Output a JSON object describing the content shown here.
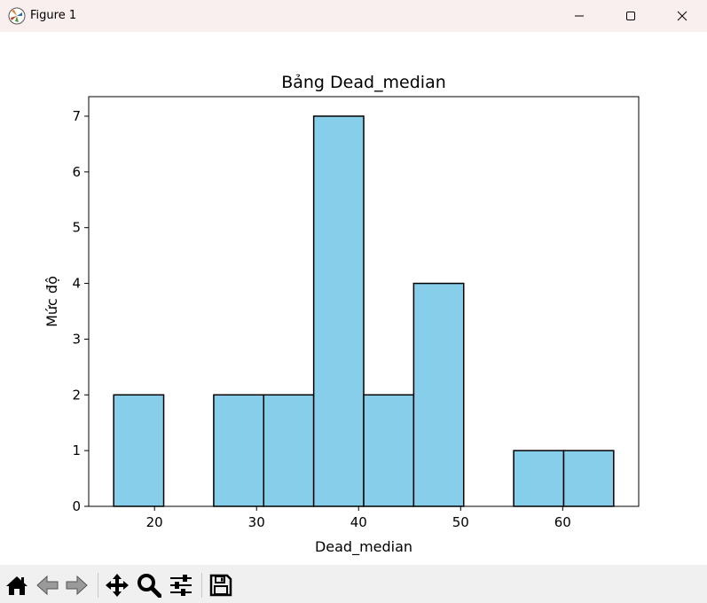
{
  "window": {
    "title": "Figure 1",
    "app_icon": "matplotlib-figure-icon"
  },
  "toolbar": {
    "buttons": [
      "home-icon",
      "back-arrow-icon",
      "forward-arrow-icon",
      "pan-move-icon",
      "zoom-magnifier-icon",
      "configure-subplots-icon",
      "save-floppy-icon"
    ]
  },
  "chart_data": {
    "type": "bar",
    "title": "Bảng Dead_median",
    "xlabel": "Dead_median",
    "ylabel": "Mức độ",
    "bin_edges": [
      16.0,
      20.9,
      25.8,
      30.7,
      35.6,
      40.5,
      45.4,
      50.3,
      55.2,
      60.1,
      65.0
    ],
    "values": [
      2,
      0,
      2,
      2,
      7,
      2,
      4,
      0,
      1,
      1
    ],
    "xlim": [
      13.55,
      67.45
    ],
    "ylim": [
      0,
      7.35
    ],
    "xticks": [
      "20",
      "30",
      "40",
      "50",
      "60"
    ],
    "yticks": [
      "0",
      "1",
      "2",
      "3",
      "4",
      "5",
      "6",
      "7"
    ],
    "bar_color": "#87ceeb",
    "edge_color": "#000000",
    "grid": false
  }
}
